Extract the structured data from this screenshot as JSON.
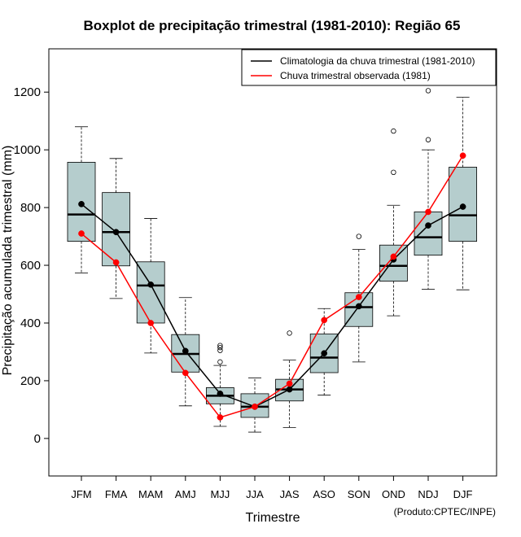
{
  "chart_data": {
    "type": "boxplot",
    "title": "Boxplot de precipitação trimestral (1981-2010): Região 65",
    "xlabel": "Trimestre",
    "ylabel": "Precipitação acumulada trimestral (mm)",
    "ylim": [
      -130,
      1350
    ],
    "yticks": [
      0,
      200,
      400,
      600,
      800,
      1000,
      1200
    ],
    "categories": [
      "JFM",
      "FMA",
      "MAM",
      "AMJ",
      "MJJ",
      "JJA",
      "JAS",
      "ASO",
      "SON",
      "OND",
      "NDJ",
      "DJF"
    ],
    "boxes": [
      {
        "whisker_low": 573,
        "q1": 683,
        "median": 776,
        "q3": 957,
        "whisker_high": 1080,
        "outliers": []
      },
      {
        "whisker_low": 485,
        "q1": 598,
        "median": 715,
        "q3": 852,
        "whisker_high": 970,
        "outliers": []
      },
      {
        "whisker_low": 296,
        "q1": 400,
        "median": 530,
        "q3": 612,
        "whisker_high": 762,
        "outliers": []
      },
      {
        "whisker_low": 113,
        "q1": 230,
        "median": 293,
        "q3": 360,
        "whisker_high": 488,
        "outliers": []
      },
      {
        "whisker_low": 42,
        "q1": 120,
        "median": 148,
        "q3": 176,
        "whisker_high": 253,
        "outliers": [
          265,
          305,
          315,
          322
        ]
      },
      {
        "whisker_low": 22,
        "q1": 73,
        "median": 110,
        "q3": 155,
        "whisker_high": 210,
        "outliers": []
      },
      {
        "whisker_low": 38,
        "q1": 130,
        "median": 170,
        "q3": 205,
        "whisker_high": 272,
        "outliers": [
          365
        ]
      },
      {
        "whisker_low": 150,
        "q1": 228,
        "median": 280,
        "q3": 362,
        "whisker_high": 450,
        "outliers": []
      },
      {
        "whisker_low": 265,
        "q1": 388,
        "median": 455,
        "q3": 505,
        "whisker_high": 655,
        "outliers": [
          700
        ]
      },
      {
        "whisker_low": 425,
        "q1": 545,
        "median": 598,
        "q3": 670,
        "whisker_high": 808,
        "outliers": [
          922,
          1065
        ]
      },
      {
        "whisker_low": 517,
        "q1": 635,
        "median": 697,
        "q3": 785,
        "whisker_high": 1000,
        "outliers": [
          1035,
          1205
        ]
      },
      {
        "whisker_low": 515,
        "q1": 683,
        "median": 773,
        "q3": 940,
        "whisker_high": 1182,
        "outliers": []
      }
    ],
    "series": [
      {
        "name": "Climatologia da chuva trimestral (1981-2010)",
        "color": "#000000",
        "values": [
          812,
          715,
          533,
          303,
          155,
          110,
          170,
          295,
          458,
          620,
          738,
          803
        ]
      },
      {
        "name": "Chuva trimestral observada (1981)",
        "color": "#ff0000",
        "values": [
          710,
          610,
          400,
          227,
          73,
          110,
          190,
          410,
          490,
          630,
          785,
          980
        ]
      }
    ],
    "box_color": "#b5cdcd",
    "legend_position": "top-right",
    "credit": "(Produto:CPTEC/INPE)"
  }
}
